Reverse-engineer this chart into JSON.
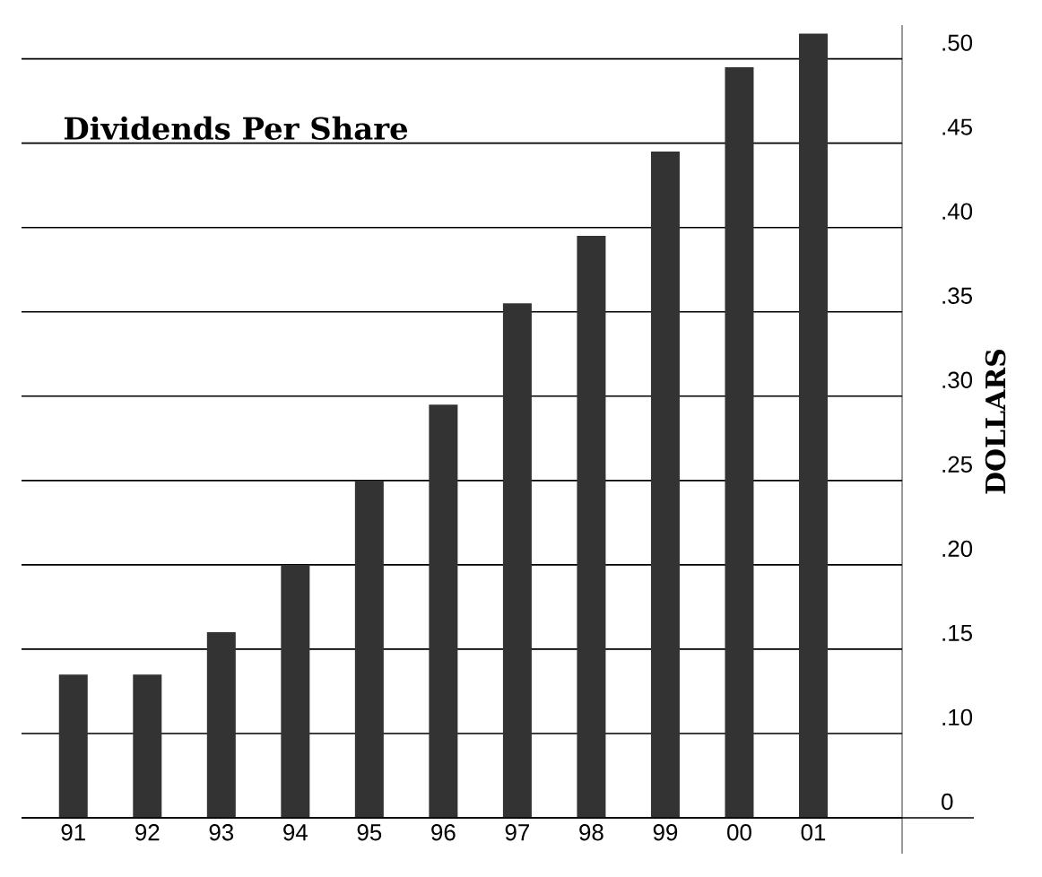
{
  "chart_data": {
    "type": "bar",
    "title": "Dividends Per Share",
    "ylabel": "DOLLARS",
    "categories": [
      "91",
      "92",
      "93",
      "94",
      "95",
      "96",
      "97",
      "98",
      "99",
      "00",
      "01"
    ],
    "values": [
      0.135,
      0.135,
      0.16,
      0.2,
      0.25,
      0.295,
      0.355,
      0.395,
      0.445,
      0.495,
      0.515
    ],
    "color": "#333333",
    "ylim": [
      0.05,
      0.52
    ],
    "yticks": [
      {
        "value": 0.05,
        "label": "0"
      },
      {
        "value": 0.1,
        "label": ".10"
      },
      {
        "value": 0.15,
        "label": ".15"
      },
      {
        "value": 0.2,
        "label": ".20"
      },
      {
        "value": 0.25,
        "label": ".25"
      },
      {
        "value": 0.3,
        "label": ".30"
      },
      {
        "value": 0.35,
        "label": ".35"
      },
      {
        "value": 0.4,
        "label": ".40"
      },
      {
        "value": 0.45,
        "label": ".45"
      },
      {
        "value": 0.5,
        "label": ".50"
      }
    ],
    "grid": "y"
  }
}
